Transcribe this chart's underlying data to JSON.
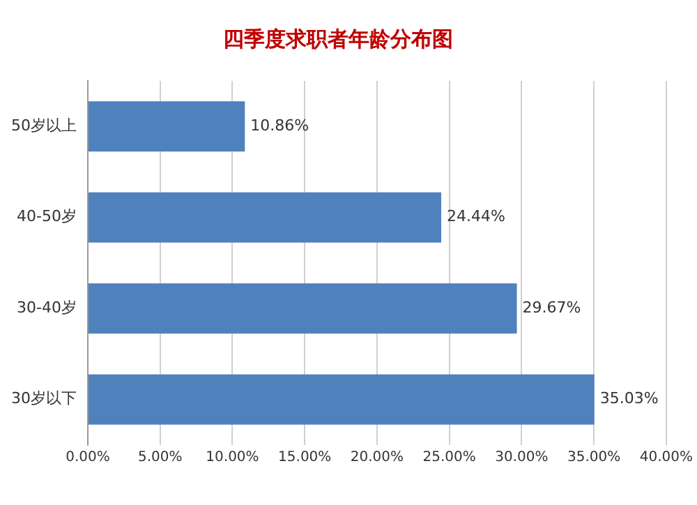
{
  "chart_data": {
    "type": "bar",
    "orientation": "horizontal",
    "title": "四季度求职者年龄分布图",
    "categories": [
      "50岁以上",
      "40-50岁",
      "30-40岁",
      "30岁以下"
    ],
    "values": [
      10.86,
      24.44,
      29.67,
      35.03
    ],
    "color": "#4f81bd",
    "value_labels": [
      "10.86%",
      "24.44%",
      "29.67%",
      "35.03%"
    ],
    "xlim": [
      0,
      40
    ],
    "xticks": [
      {
        "value": 0,
        "label": "0.00%"
      },
      {
        "value": 5,
        "label": "5.00%"
      },
      {
        "value": 10,
        "label": "10.00%"
      },
      {
        "value": 15,
        "label": "15.00%"
      },
      {
        "value": 20,
        "label": "20.00%"
      },
      {
        "value": 25,
        "label": "25.00%"
      },
      {
        "value": 30,
        "label": "30.00%"
      },
      {
        "value": 35,
        "label": "35.00%"
      },
      {
        "value": 40,
        "label": "40.00%"
      }
    ],
    "grid": "x"
  }
}
